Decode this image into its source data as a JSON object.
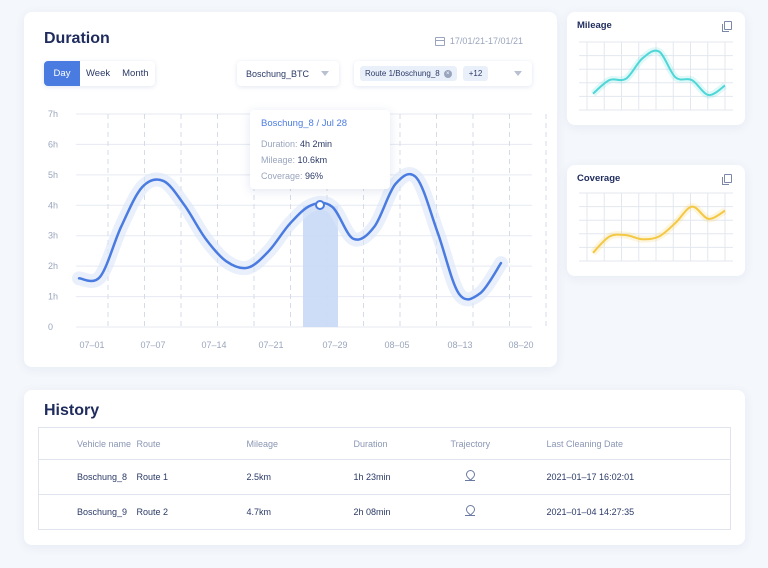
{
  "duration": {
    "title": "Duration",
    "date_range": "17/01/21-17/01/21",
    "period_tabs": [
      "Day",
      "Week",
      "Month"
    ],
    "active_tab": "Day",
    "vehicle_select": "Boschung_BTC",
    "route_chip": "Route 1/Boschung_8",
    "route_more": "+12",
    "tooltip": {
      "title": "Boschung_8 / Jul 28",
      "rows": [
        {
          "key": "Duration:",
          "value": "4h 2min"
        },
        {
          "key": "Mileage:",
          "value": "10.6km"
        },
        {
          "key": "Coverage:",
          "value": "96%"
        }
      ]
    }
  },
  "chart_data": {
    "type": "line",
    "title": "Duration",
    "y_ticks": [
      "7h",
      "6h",
      "5h",
      "4h",
      "3h",
      "2h",
      "1h",
      "0"
    ],
    "x_ticks": [
      "07–01",
      "07–07",
      "07–14",
      "07–21",
      "07–29",
      "08–05",
      "08–13",
      "08–20"
    ],
    "ylim": [
      0,
      7
    ],
    "highlight_x": "Jul 28",
    "series": [
      {
        "color": "#4a7be0",
        "x": [
          1,
          2,
          3,
          4,
          5,
          6,
          7,
          8,
          9,
          10,
          11,
          12,
          13,
          14,
          15,
          16,
          17,
          18,
          19,
          20,
          21
        ],
        "values": [
          1.6,
          1.65,
          3.3,
          4.6,
          4.8,
          4.0,
          2.9,
          2.15,
          1.95,
          2.5,
          3.4,
          4.0,
          3.95,
          2.9,
          3.3,
          4.7,
          4.9,
          3.1,
          1.1,
          1.1,
          2.1
        ]
      }
    ]
  },
  "mileage": {
    "title": "Mileage",
    "color": "#4fd6d6",
    "values": [
      1.2,
      2.2,
      2.3,
      3.8,
      4.3,
      2.4,
      2.2,
      1.1,
      1.8
    ]
  },
  "coverage": {
    "title": "Coverage",
    "color": "#f4c842",
    "values": [
      0.6,
      1.8,
      1.9,
      1.6,
      1.8,
      2.8,
      4.0,
      3.1,
      3.7
    ]
  },
  "history": {
    "title": "History",
    "columns": [
      "Vehicle name",
      "Route",
      "Mileage",
      "Duration",
      "Trajectory",
      "Last Cleaning Date"
    ],
    "rows": [
      {
        "vehicle": "Boschung_8",
        "route": "Route 1",
        "mileage": "2.5km",
        "duration": "1h 23min",
        "date": "2021–01–17 16:02:01"
      },
      {
        "vehicle": "Boschung_9",
        "route": "Route  2",
        "mileage": "4.7km",
        "duration": "2h 08min",
        "date": "2021–01–04 14:27:35"
      }
    ]
  }
}
